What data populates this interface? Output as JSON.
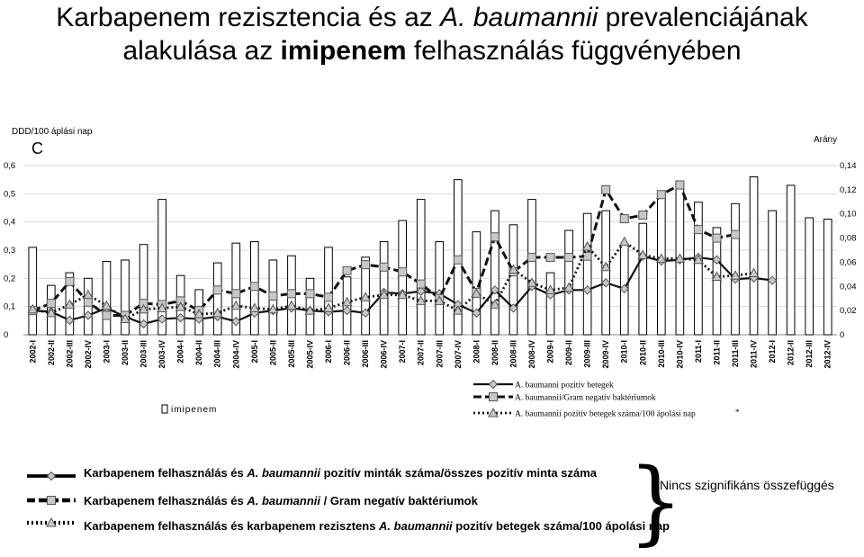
{
  "title_line1_a": "Karbapenem rezisztencia és az ",
  "title_line1_b": "A. baumannii",
  "title_line1_c": " prevalenciájának",
  "title_line2_a": "alakulása az ",
  "title_line2_b": "imipenem",
  "title_line2_c": " felhasználás függvényében",
  "left_axis_caption": "DDD/100 áplási nap",
  "right_axis_caption": "Arány",
  "corner_letter": "C",
  "chart_legend": {
    "bar": "imipenem",
    "s1": "A. baumanni pozitív betegek",
    "s2": "A. baumannii/Gram negatív baktériumok",
    "s3": "A. baumannii pozitív betegek száma/100 ápolási nap",
    "asterisk": "*"
  },
  "bottom_legend": {
    "r1_a": "Karbapenem felhasználás és ",
    "r1_b": "A. baumannii",
    "r1_c": " pozitív minták száma/összes pozitív minta száma",
    "r2_a": "Karbapenem felhasználás és ",
    "r2_b": "A. baumannii",
    "r2_c": " / Gram negatív baktériumok",
    "r3_a": "Karbapenem felhasználás és karbapenem rezisztens ",
    "r3_b": "A. baumannii",
    "r3_c": " pozitív betegek száma/100 ápolási nap",
    "note": "Nincs szignifikáns összefüggés"
  },
  "chart_data": {
    "type": "bar+line",
    "categories": [
      "2002-I",
      "2002-II",
      "2002-III",
      "2002-IV",
      "2003-I",
      "2003-II",
      "2003-III",
      "2003-IV",
      "2004-I",
      "2004-II",
      "2004-III",
      "2004-IV",
      "2005-I",
      "2005-II",
      "2005-III",
      "2005-IV",
      "2006-I",
      "2006-II",
      "2006-III",
      "2006-IV",
      "2007-I",
      "2007-II",
      "2007-III",
      "2007-IV",
      "2008-I",
      "2008-II",
      "2008-III",
      "2008-IV",
      "2009-I",
      "2009-II",
      "2009-III",
      "2009-IV",
      "2010-I",
      "2010-II",
      "2010-III",
      "2010-IV",
      "2011-I",
      "2011-II",
      "2011-III",
      "2011-IV",
      "2012-I",
      "2012-II",
      "2012-III",
      "2012-IV"
    ],
    "left_axis": {
      "label": "DDD/100 áplási nap",
      "min": 0,
      "max": 0.6,
      "ticks": [
        "0",
        "0,1",
        "0,2",
        "0,3",
        "0,4",
        "0,5",
        "0,6"
      ]
    },
    "right_axis": {
      "label": "Arány",
      "min": 0,
      "max": 0.14,
      "ticks": [
        "0",
        "0,02",
        "0,04",
        "0,06",
        "0,08",
        "0,10",
        "0,12",
        "0,14"
      ]
    },
    "bars": {
      "name": "imipenem",
      "axis": "left",
      "values": [
        0.31,
        0.175,
        0.22,
        0.2,
        0.26,
        0.265,
        0.32,
        0.48,
        0.21,
        0.16,
        0.255,
        0.325,
        0.33,
        0.265,
        0.28,
        0.2,
        0.31,
        0.205,
        0.275,
        0.33,
        0.405,
        0.48,
        0.33,
        0.55,
        0.365,
        0.44,
        0.39,
        0.48,
        0.22,
        0.37,
        0.43,
        0.44,
        0.32,
        0.395,
        0.51,
        0.53,
        0.47,
        0.38,
        0.465,
        0.56,
        0.44,
        0.53,
        0.415,
        0.41
      ]
    },
    "series": [
      {
        "name": "A. baumanni pozitív betegek",
        "axis": "right",
        "marker": "diamond",
        "style": "solid",
        "values": [
          0.02,
          0.019,
          0.012,
          0.016,
          0.022,
          0.015,
          0.009,
          0.013,
          0.014,
          0.013,
          0.015,
          0.011,
          0.018,
          0.02,
          0.022,
          0.02,
          0.019,
          0.02,
          0.018,
          0.035,
          0.034,
          0.036,
          0.034,
          0.025,
          0.018,
          0.037,
          0.022,
          0.04,
          0.033,
          0.037,
          0.037,
          0.043,
          0.038,
          0.065,
          0.061,
          0.062,
          0.064,
          0.062,
          0.046,
          0.047,
          0.045,
          null,
          null,
          null
        ]
      },
      {
        "name": "A. baumannii/Gram negatív baktériumok",
        "axis": "right",
        "marker": "square",
        "style": "dashed",
        "values": [
          0.02,
          0.026,
          0.044,
          0.027,
          0.016,
          0.016,
          0.026,
          0.025,
          0.028,
          0.02,
          0.037,
          0.034,
          0.04,
          0.032,
          0.034,
          0.034,
          0.031,
          0.053,
          0.058,
          0.056,
          0.052,
          0.042,
          0.03,
          0.062,
          0.035,
          0.081,
          0.052,
          0.064,
          0.064,
          0.064,
          0.065,
          0.12,
          0.096,
          0.099,
          0.116,
          0.124,
          0.087,
          0.08,
          0.083,
          null,
          null,
          null,
          null,
          null
        ]
      },
      {
        "name": "A. baumannii pozitív betegek száma/100 ápolási nap",
        "axis": "right",
        "marker": "triangle",
        "style": "dotted",
        "values": [
          0.021,
          0.018,
          0.025,
          0.033,
          0.024,
          0.013,
          0.021,
          0.022,
          0.023,
          0.017,
          0.018,
          0.024,
          0.022,
          0.021,
          0.024,
          0.02,
          0.022,
          0.027,
          0.031,
          0.033,
          0.033,
          0.028,
          0.028,
          0.02,
          0.034,
          0.025,
          0.054,
          0.043,
          0.037,
          0.039,
          0.073,
          0.056,
          0.077,
          0.066,
          0.063,
          0.063,
          0.062,
          0.048,
          0.049,
          0.051,
          null,
          null,
          null,
          null
        ]
      }
    ]
  }
}
